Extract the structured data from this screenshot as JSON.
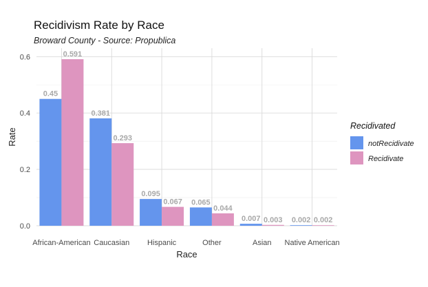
{
  "chart_data": {
    "type": "bar",
    "title": "Recidivism Rate by Race",
    "subtitle": "Broward County - Source: Propublica",
    "xlabel": "Race",
    "ylabel": "Rate",
    "categories": [
      "African-American",
      "Caucasian",
      "Hispanic",
      "Other",
      "Asian",
      "Native American"
    ],
    "series": [
      {
        "name": "notRecidivate",
        "color": "#6495ED",
        "values": [
          0.45,
          0.381,
          0.095,
          0.065,
          0.007,
          0.002
        ]
      },
      {
        "name": "Recidivate",
        "color": "#DE95BF",
        "values": [
          0.591,
          0.293,
          0.067,
          0.044,
          0.003,
          0.002
        ]
      }
    ],
    "ylim": [
      0,
      0.63
    ],
    "yticks": [
      0.0,
      0.2,
      0.4,
      0.6
    ],
    "ytick_labels": [
      "0.0",
      "0.2",
      "0.4",
      "0.6"
    ],
    "grid": true,
    "legend": {
      "title": "Recidivated",
      "placement": "right"
    }
  }
}
